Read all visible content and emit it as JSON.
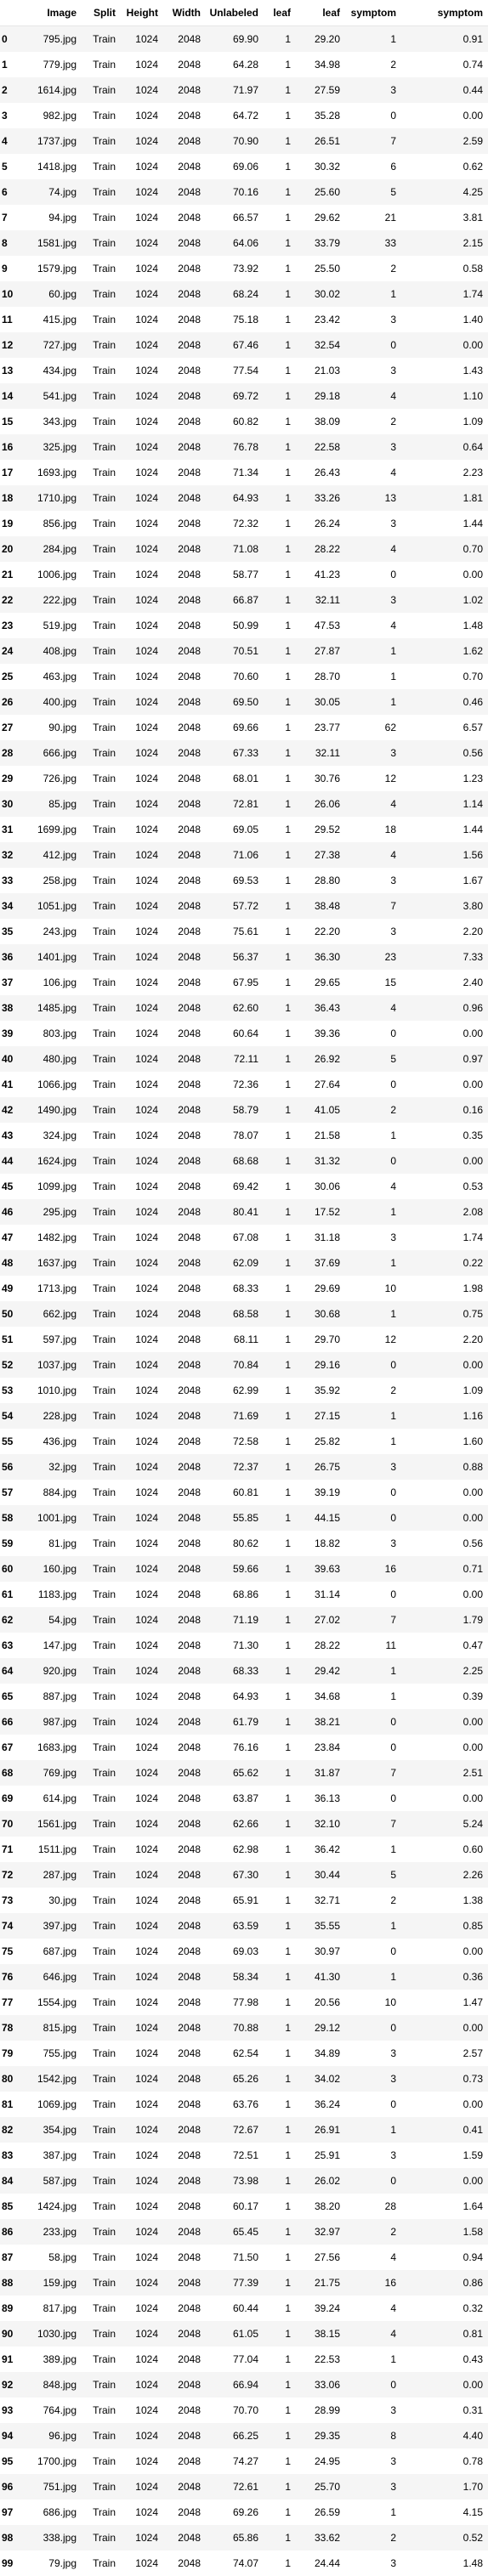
{
  "columns": [
    "",
    "Image",
    "Split",
    "Height",
    "Width",
    "Unlabeled",
    "leaf",
    "leaf",
    "symptom",
    "symptom"
  ],
  "rows": [
    [
      "0",
      "795.jpg",
      "Train",
      "1024",
      "2048",
      "69.90",
      "1",
      "29.20",
      "1",
      "0.91"
    ],
    [
      "1",
      "779.jpg",
      "Train",
      "1024",
      "2048",
      "64.28",
      "1",
      "34.98",
      "2",
      "0.74"
    ],
    [
      "2",
      "1614.jpg",
      "Train",
      "1024",
      "2048",
      "71.97",
      "1",
      "27.59",
      "3",
      "0.44"
    ],
    [
      "3",
      "982.jpg",
      "Train",
      "1024",
      "2048",
      "64.72",
      "1",
      "35.28",
      "0",
      "0.00"
    ],
    [
      "4",
      "1737.jpg",
      "Train",
      "1024",
      "2048",
      "70.90",
      "1",
      "26.51",
      "7",
      "2.59"
    ],
    [
      "5",
      "1418.jpg",
      "Train",
      "1024",
      "2048",
      "69.06",
      "1",
      "30.32",
      "6",
      "0.62"
    ],
    [
      "6",
      "74.jpg",
      "Train",
      "1024",
      "2048",
      "70.16",
      "1",
      "25.60",
      "5",
      "4.25"
    ],
    [
      "7",
      "94.jpg",
      "Train",
      "1024",
      "2048",
      "66.57",
      "1",
      "29.62",
      "21",
      "3.81"
    ],
    [
      "8",
      "1581.jpg",
      "Train",
      "1024",
      "2048",
      "64.06",
      "1",
      "33.79",
      "33",
      "2.15"
    ],
    [
      "9",
      "1579.jpg",
      "Train",
      "1024",
      "2048",
      "73.92",
      "1",
      "25.50",
      "2",
      "0.58"
    ],
    [
      "10",
      "60.jpg",
      "Train",
      "1024",
      "2048",
      "68.24",
      "1",
      "30.02",
      "1",
      "1.74"
    ],
    [
      "11",
      "415.jpg",
      "Train",
      "1024",
      "2048",
      "75.18",
      "1",
      "23.42",
      "3",
      "1.40"
    ],
    [
      "12",
      "727.jpg",
      "Train",
      "1024",
      "2048",
      "67.46",
      "1",
      "32.54",
      "0",
      "0.00"
    ],
    [
      "13",
      "434.jpg",
      "Train",
      "1024",
      "2048",
      "77.54",
      "1",
      "21.03",
      "3",
      "1.43"
    ],
    [
      "14",
      "541.jpg",
      "Train",
      "1024",
      "2048",
      "69.72",
      "1",
      "29.18",
      "4",
      "1.10"
    ],
    [
      "15",
      "343.jpg",
      "Train",
      "1024",
      "2048",
      "60.82",
      "1",
      "38.09",
      "2",
      "1.09"
    ],
    [
      "16",
      "325.jpg",
      "Train",
      "1024",
      "2048",
      "76.78",
      "1",
      "22.58",
      "3",
      "0.64"
    ],
    [
      "17",
      "1693.jpg",
      "Train",
      "1024",
      "2048",
      "71.34",
      "1",
      "26.43",
      "4",
      "2.23"
    ],
    [
      "18",
      "1710.jpg",
      "Train",
      "1024",
      "2048",
      "64.93",
      "1",
      "33.26",
      "13",
      "1.81"
    ],
    [
      "19",
      "856.jpg",
      "Train",
      "1024",
      "2048",
      "72.32",
      "1",
      "26.24",
      "3",
      "1.44"
    ],
    [
      "20",
      "284.jpg",
      "Train",
      "1024",
      "2048",
      "71.08",
      "1",
      "28.22",
      "4",
      "0.70"
    ],
    [
      "21",
      "1006.jpg",
      "Train",
      "1024",
      "2048",
      "58.77",
      "1",
      "41.23",
      "0",
      "0.00"
    ],
    [
      "22",
      "222.jpg",
      "Train",
      "1024",
      "2048",
      "66.87",
      "1",
      "32.11",
      "3",
      "1.02"
    ],
    [
      "23",
      "519.jpg",
      "Train",
      "1024",
      "2048",
      "50.99",
      "1",
      "47.53",
      "4",
      "1.48"
    ],
    [
      "24",
      "408.jpg",
      "Train",
      "1024",
      "2048",
      "70.51",
      "1",
      "27.87",
      "1",
      "1.62"
    ],
    [
      "25",
      "463.jpg",
      "Train",
      "1024",
      "2048",
      "70.60",
      "1",
      "28.70",
      "1",
      "0.70"
    ],
    [
      "26",
      "400.jpg",
      "Train",
      "1024",
      "2048",
      "69.50",
      "1",
      "30.05",
      "1",
      "0.46"
    ],
    [
      "27",
      "90.jpg",
      "Train",
      "1024",
      "2048",
      "69.66",
      "1",
      "23.77",
      "62",
      "6.57"
    ],
    [
      "28",
      "666.jpg",
      "Train",
      "1024",
      "2048",
      "67.33",
      "1",
      "32.11",
      "3",
      "0.56"
    ],
    [
      "29",
      "726.jpg",
      "Train",
      "1024",
      "2048",
      "68.01",
      "1",
      "30.76",
      "12",
      "1.23"
    ],
    [
      "30",
      "85.jpg",
      "Train",
      "1024",
      "2048",
      "72.81",
      "1",
      "26.06",
      "4",
      "1.14"
    ],
    [
      "31",
      "1699.jpg",
      "Train",
      "1024",
      "2048",
      "69.05",
      "1",
      "29.52",
      "18",
      "1.44"
    ],
    [
      "32",
      "412.jpg",
      "Train",
      "1024",
      "2048",
      "71.06",
      "1",
      "27.38",
      "4",
      "1.56"
    ],
    [
      "33",
      "258.jpg",
      "Train",
      "1024",
      "2048",
      "69.53",
      "1",
      "28.80",
      "3",
      "1.67"
    ],
    [
      "34",
      "1051.jpg",
      "Train",
      "1024",
      "2048",
      "57.72",
      "1",
      "38.48",
      "7",
      "3.80"
    ],
    [
      "35",
      "243.jpg",
      "Train",
      "1024",
      "2048",
      "75.61",
      "1",
      "22.20",
      "3",
      "2.20"
    ],
    [
      "36",
      "1401.jpg",
      "Train",
      "1024",
      "2048",
      "56.37",
      "1",
      "36.30",
      "23",
      "7.33"
    ],
    [
      "37",
      "106.jpg",
      "Train",
      "1024",
      "2048",
      "67.95",
      "1",
      "29.65",
      "15",
      "2.40"
    ],
    [
      "38",
      "1485.jpg",
      "Train",
      "1024",
      "2048",
      "62.60",
      "1",
      "36.43",
      "4",
      "0.96"
    ],
    [
      "39",
      "803.jpg",
      "Train",
      "1024",
      "2048",
      "60.64",
      "1",
      "39.36",
      "0",
      "0.00"
    ],
    [
      "40",
      "480.jpg",
      "Train",
      "1024",
      "2048",
      "72.11",
      "1",
      "26.92",
      "5",
      "0.97"
    ],
    [
      "41",
      "1066.jpg",
      "Train",
      "1024",
      "2048",
      "72.36",
      "1",
      "27.64",
      "0",
      "0.00"
    ],
    [
      "42",
      "1490.jpg",
      "Train",
      "1024",
      "2048",
      "58.79",
      "1",
      "41.05",
      "2",
      "0.16"
    ],
    [
      "43",
      "324.jpg",
      "Train",
      "1024",
      "2048",
      "78.07",
      "1",
      "21.58",
      "1",
      "0.35"
    ],
    [
      "44",
      "1624.jpg",
      "Train",
      "1024",
      "2048",
      "68.68",
      "1",
      "31.32",
      "0",
      "0.00"
    ],
    [
      "45",
      "1099.jpg",
      "Train",
      "1024",
      "2048",
      "69.42",
      "1",
      "30.06",
      "4",
      "0.53"
    ],
    [
      "46",
      "295.jpg",
      "Train",
      "1024",
      "2048",
      "80.41",
      "1",
      "17.52",
      "1",
      "2.08"
    ],
    [
      "47",
      "1482.jpg",
      "Train",
      "1024",
      "2048",
      "67.08",
      "1",
      "31.18",
      "3",
      "1.74"
    ],
    [
      "48",
      "1637.jpg",
      "Train",
      "1024",
      "2048",
      "62.09",
      "1",
      "37.69",
      "1",
      "0.22"
    ],
    [
      "49",
      "1713.jpg",
      "Train",
      "1024",
      "2048",
      "68.33",
      "1",
      "29.69",
      "10",
      "1.98"
    ],
    [
      "50",
      "662.jpg",
      "Train",
      "1024",
      "2048",
      "68.58",
      "1",
      "30.68",
      "1",
      "0.75"
    ],
    [
      "51",
      "597.jpg",
      "Train",
      "1024",
      "2048",
      "68.11",
      "1",
      "29.70",
      "12",
      "2.20"
    ],
    [
      "52",
      "1037.jpg",
      "Train",
      "1024",
      "2048",
      "70.84",
      "1",
      "29.16",
      "0",
      "0.00"
    ],
    [
      "53",
      "1010.jpg",
      "Train",
      "1024",
      "2048",
      "62.99",
      "1",
      "35.92",
      "2",
      "1.09"
    ],
    [
      "54",
      "228.jpg",
      "Train",
      "1024",
      "2048",
      "71.69",
      "1",
      "27.15",
      "1",
      "1.16"
    ],
    [
      "55",
      "436.jpg",
      "Train",
      "1024",
      "2048",
      "72.58",
      "1",
      "25.82",
      "1",
      "1.60"
    ],
    [
      "56",
      "32.jpg",
      "Train",
      "1024",
      "2048",
      "72.37",
      "1",
      "26.75",
      "3",
      "0.88"
    ],
    [
      "57",
      "884.jpg",
      "Train",
      "1024",
      "2048",
      "60.81",
      "1",
      "39.19",
      "0",
      "0.00"
    ],
    [
      "58",
      "1001.jpg",
      "Train",
      "1024",
      "2048",
      "55.85",
      "1",
      "44.15",
      "0",
      "0.00"
    ],
    [
      "59",
      "81.jpg",
      "Train",
      "1024",
      "2048",
      "80.62",
      "1",
      "18.82",
      "3",
      "0.56"
    ],
    [
      "60",
      "160.jpg",
      "Train",
      "1024",
      "2048",
      "59.66",
      "1",
      "39.63",
      "16",
      "0.71"
    ],
    [
      "61",
      "1183.jpg",
      "Train",
      "1024",
      "2048",
      "68.86",
      "1",
      "31.14",
      "0",
      "0.00"
    ],
    [
      "62",
      "54.jpg",
      "Train",
      "1024",
      "2048",
      "71.19",
      "1",
      "27.02",
      "7",
      "1.79"
    ],
    [
      "63",
      "147.jpg",
      "Train",
      "1024",
      "2048",
      "71.30",
      "1",
      "28.22",
      "11",
      "0.47"
    ],
    [
      "64",
      "920.jpg",
      "Train",
      "1024",
      "2048",
      "68.33",
      "1",
      "29.42",
      "1",
      "2.25"
    ],
    [
      "65",
      "887.jpg",
      "Train",
      "1024",
      "2048",
      "64.93",
      "1",
      "34.68",
      "1",
      "0.39"
    ],
    [
      "66",
      "987.jpg",
      "Train",
      "1024",
      "2048",
      "61.79",
      "1",
      "38.21",
      "0",
      "0.00"
    ],
    [
      "67",
      "1683.jpg",
      "Train",
      "1024",
      "2048",
      "76.16",
      "1",
      "23.84",
      "0",
      "0.00"
    ],
    [
      "68",
      "769.jpg",
      "Train",
      "1024",
      "2048",
      "65.62",
      "1",
      "31.87",
      "7",
      "2.51"
    ],
    [
      "69",
      "614.jpg",
      "Train",
      "1024",
      "2048",
      "63.87",
      "1",
      "36.13",
      "0",
      "0.00"
    ],
    [
      "70",
      "1561.jpg",
      "Train",
      "1024",
      "2048",
      "62.66",
      "1",
      "32.10",
      "7",
      "5.24"
    ],
    [
      "71",
      "1511.jpg",
      "Train",
      "1024",
      "2048",
      "62.98",
      "1",
      "36.42",
      "1",
      "0.60"
    ],
    [
      "72",
      "287.jpg",
      "Train",
      "1024",
      "2048",
      "67.30",
      "1",
      "30.44",
      "5",
      "2.26"
    ],
    [
      "73",
      "30.jpg",
      "Train",
      "1024",
      "2048",
      "65.91",
      "1",
      "32.71",
      "2",
      "1.38"
    ],
    [
      "74",
      "397.jpg",
      "Train",
      "1024",
      "2048",
      "63.59",
      "1",
      "35.55",
      "1",
      "0.85"
    ],
    [
      "75",
      "687.jpg",
      "Train",
      "1024",
      "2048",
      "69.03",
      "1",
      "30.97",
      "0",
      "0.00"
    ],
    [
      "76",
      "646.jpg",
      "Train",
      "1024",
      "2048",
      "58.34",
      "1",
      "41.30",
      "1",
      "0.36"
    ],
    [
      "77",
      "1554.jpg",
      "Train",
      "1024",
      "2048",
      "77.98",
      "1",
      "20.56",
      "10",
      "1.47"
    ],
    [
      "78",
      "815.jpg",
      "Train",
      "1024",
      "2048",
      "70.88",
      "1",
      "29.12",
      "0",
      "0.00"
    ],
    [
      "79",
      "755.jpg",
      "Train",
      "1024",
      "2048",
      "62.54",
      "1",
      "34.89",
      "3",
      "2.57"
    ],
    [
      "80",
      "1542.jpg",
      "Train",
      "1024",
      "2048",
      "65.26",
      "1",
      "34.02",
      "3",
      "0.73"
    ],
    [
      "81",
      "1069.jpg",
      "Train",
      "1024",
      "2048",
      "63.76",
      "1",
      "36.24",
      "0",
      "0.00"
    ],
    [
      "82",
      "354.jpg",
      "Train",
      "1024",
      "2048",
      "72.67",
      "1",
      "26.91",
      "1",
      "0.41"
    ],
    [
      "83",
      "387.jpg",
      "Train",
      "1024",
      "2048",
      "72.51",
      "1",
      "25.91",
      "3",
      "1.59"
    ],
    [
      "84",
      "587.jpg",
      "Train",
      "1024",
      "2048",
      "73.98",
      "1",
      "26.02",
      "0",
      "0.00"
    ],
    [
      "85",
      "1424.jpg",
      "Train",
      "1024",
      "2048",
      "60.17",
      "1",
      "38.20",
      "28",
      "1.64"
    ],
    [
      "86",
      "233.jpg",
      "Train",
      "1024",
      "2048",
      "65.45",
      "1",
      "32.97",
      "2",
      "1.58"
    ],
    [
      "87",
      "58.jpg",
      "Train",
      "1024",
      "2048",
      "71.50",
      "1",
      "27.56",
      "4",
      "0.94"
    ],
    [
      "88",
      "159.jpg",
      "Train",
      "1024",
      "2048",
      "77.39",
      "1",
      "21.75",
      "16",
      "0.86"
    ],
    [
      "89",
      "817.jpg",
      "Train",
      "1024",
      "2048",
      "60.44",
      "1",
      "39.24",
      "4",
      "0.32"
    ],
    [
      "90",
      "1030.jpg",
      "Train",
      "1024",
      "2048",
      "61.05",
      "1",
      "38.15",
      "4",
      "0.81"
    ],
    [
      "91",
      "389.jpg",
      "Train",
      "1024",
      "2048",
      "77.04",
      "1",
      "22.53",
      "1",
      "0.43"
    ],
    [
      "92",
      "848.jpg",
      "Train",
      "1024",
      "2048",
      "66.94",
      "1",
      "33.06",
      "0",
      "0.00"
    ],
    [
      "93",
      "764.jpg",
      "Train",
      "1024",
      "2048",
      "70.70",
      "1",
      "28.99",
      "3",
      "0.31"
    ],
    [
      "94",
      "96.jpg",
      "Train",
      "1024",
      "2048",
      "66.25",
      "1",
      "29.35",
      "8",
      "4.40"
    ],
    [
      "95",
      "1700.jpg",
      "Train",
      "1024",
      "2048",
      "74.27",
      "1",
      "24.95",
      "3",
      "0.78"
    ],
    [
      "96",
      "751.jpg",
      "Train",
      "1024",
      "2048",
      "72.61",
      "1",
      "25.70",
      "3",
      "1.70"
    ],
    [
      "97",
      "686.jpg",
      "Train",
      "1024",
      "2048",
      "69.26",
      "1",
      "26.59",
      "1",
      "4.15"
    ],
    [
      "98",
      "338.jpg",
      "Train",
      "1024",
      "2048",
      "65.86",
      "1",
      "33.62",
      "2",
      "0.52"
    ],
    [
      "99",
      "79.jpg",
      "Train",
      "1024",
      "2048",
      "74.07",
      "1",
      "24.44",
      "3",
      "1.48"
    ]
  ]
}
